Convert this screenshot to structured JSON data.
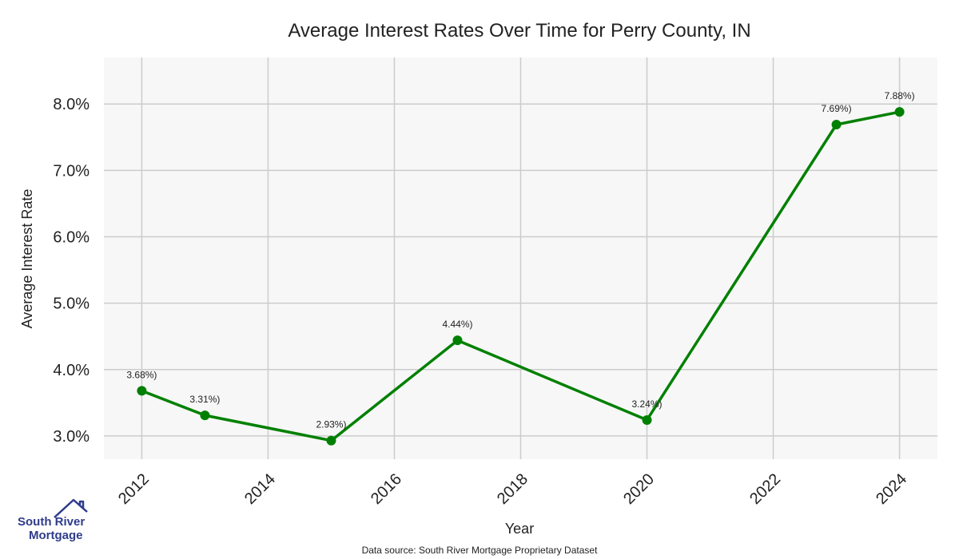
{
  "chart_data": {
    "type": "line",
    "title": "Average Interest Rates Over Time for Perry County, IN",
    "xlabel": "Year",
    "ylabel": "Average Interest Rate",
    "x": [
      2012,
      2013,
      2015,
      2017,
      2020,
      2023,
      2024
    ],
    "series": [
      {
        "values": [
          3.68,
          3.31,
          2.93,
          4.44,
          3.24,
          7.69,
          7.88
        ],
        "data_labels": [
          "3.68%)",
          "3.31%)",
          "2.93%)",
          "4.44%)",
          "3.24%)",
          "7.69%)",
          "7.88%)"
        ],
        "color": "#008000"
      }
    ],
    "x_ticks": [
      2012,
      2014,
      2016,
      2018,
      2020,
      2022,
      2024
    ],
    "y_ticks": [
      3.0,
      4.0,
      5.0,
      6.0,
      7.0,
      8.0
    ],
    "y_tick_labels": [
      "3.0%",
      "4.0%",
      "5.0%",
      "6.0%",
      "7.0%",
      "8.0%"
    ],
    "xlim": [
      2011.4,
      2024.6
    ],
    "ylim": [
      2.65,
      8.7
    ],
    "grid": true,
    "plot_background": "#f7f7f7",
    "grid_color": "#cccccc"
  },
  "footer": {
    "source": "Data source: South River Mortgage Proprietary Dataset"
  },
  "logo": {
    "line1": "South River",
    "line2": "Mortgage",
    "color": "#2f3c8c"
  }
}
